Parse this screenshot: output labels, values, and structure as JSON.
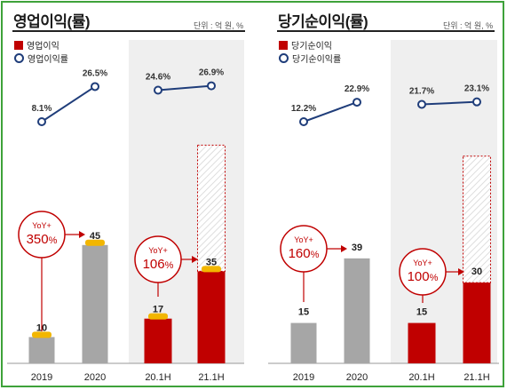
{
  "charts": [
    {
      "title": "영업이익(률)",
      "unit": "단위 : 억 원, %",
      "legend": {
        "bar": "영업이익",
        "line": "영업이익률"
      },
      "callouts": [
        {
          "label": "YoY+",
          "value": "350",
          "pct": "%"
        },
        {
          "label": "YoY+",
          "value": "106",
          "pct": "%"
        }
      ]
    },
    {
      "title": "당기순이익(률)",
      "unit": "단위 : 억 원, %",
      "legend": {
        "bar": "당기순이익",
        "line": "당기순이익률"
      },
      "callouts": [
        {
          "label": "YoY+",
          "value": "160",
          "pct": "%"
        },
        {
          "label": "YoY+",
          "value": "100",
          "pct": "%"
        }
      ]
    }
  ],
  "chart_data": [
    {
      "type": "bar",
      "title": "영업이익(률)",
      "categories": [
        "2019",
        "2020",
        "20.1H",
        "21.1H"
      ],
      "series": [
        {
          "name": "영업이익",
          "values": [
            10,
            45,
            17,
            35
          ],
          "labels": [
            "10",
            "45",
            "17",
            "35"
          ]
        },
        {
          "name": "영업이익률",
          "type": "line",
          "values": [
            8.1,
            26.5,
            24.6,
            26.9
          ],
          "labels": [
            "8.1%",
            "26.5%",
            "24.6%",
            "26.9%"
          ]
        }
      ],
      "colors": {
        "annual": "#a6a6a6",
        "half": "#c00000",
        "cap": "#f2b600",
        "line": "#1f3d7a",
        "callout": "#c00000"
      }
    },
    {
      "type": "bar",
      "title": "당기순이익(률)",
      "categories": [
        "2019",
        "2020",
        "20.1H",
        "21.1H"
      ],
      "series": [
        {
          "name": "당기순이익",
          "values": [
            15,
            39,
            15,
            30
          ],
          "labels": [
            "15",
            "39",
            "15",
            "30"
          ]
        },
        {
          "name": "당기순이익률",
          "type": "line",
          "values": [
            12.2,
            22.9,
            21.7,
            23.1
          ],
          "labels": [
            "12.2%",
            "22.9%",
            "21.7%",
            "23.1%"
          ]
        }
      ],
      "colors": {
        "annual": "#a6a6a6",
        "half": "#c00000",
        "line": "#1f3d7a",
        "callout": "#c00000"
      }
    }
  ]
}
